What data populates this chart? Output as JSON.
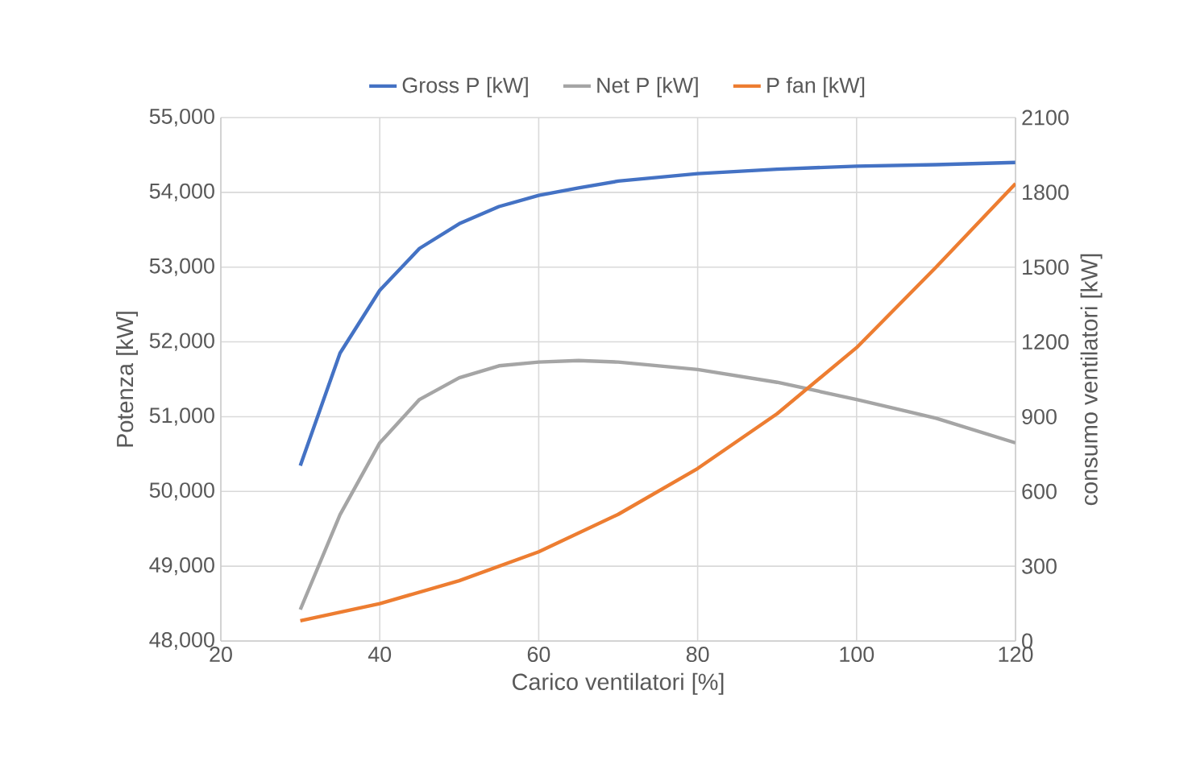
{
  "chart_data": {
    "type": "line",
    "xlabel": "Carico ventilatori [%]",
    "ylabel": "Potenza [kW]",
    "y2label": "consumo  ventilatori [kW]",
    "x": [
      30,
      35,
      40,
      45,
      50,
      55,
      60,
      65,
      70,
      80,
      90,
      100,
      110,
      120
    ],
    "series": [
      {
        "name": "Gross P [kW]",
        "color": "#4472c4",
        "values": [
          50346,
          51850,
          52690,
          53250,
          53580,
          53810,
          53960,
          54060,
          54150,
          54250,
          54310,
          54350,
          54370,
          54400
        ]
      },
      {
        "name": "Net P [kW]",
        "color": "#a5a5a5",
        "values": [
          48420,
          49690,
          50650,
          51230,
          51520,
          51680,
          51730,
          51750,
          51730,
          51630,
          51460,
          51230,
          50980,
          50650
        ]
      },
      {
        "name": "P fan [kW]",
        "color": "#ed7d31",
        "axis": "y2",
        "x": [
          30,
          40,
          50,
          60,
          70,
          80,
          90,
          100,
          110,
          120
        ],
        "values": [
          81,
          150,
          242,
          358,
          508,
          692,
          912,
          1177,
          1500,
          1835
        ]
      }
    ],
    "xlim": [
      20,
      120
    ],
    "xticks": [
      20,
      40,
      60,
      80,
      100,
      120
    ],
    "ylim": [
      48000,
      55000
    ],
    "yticks": [
      {
        "value": 48000,
        "label": "48,000"
      },
      {
        "value": 49000,
        "label": "49,000"
      },
      {
        "value": 50000,
        "label": "50,000"
      },
      {
        "value": 51000,
        "label": "51,000"
      },
      {
        "value": 52000,
        "label": "52,000"
      },
      {
        "value": 53000,
        "label": "53,000"
      },
      {
        "value": 54000,
        "label": "54,000"
      },
      {
        "value": 55000,
        "label": "55,000"
      }
    ],
    "y2lim": [
      0,
      2100
    ],
    "y2ticks": [
      0,
      300,
      600,
      900,
      1200,
      1500,
      1800,
      2100
    ],
    "grid": true,
    "legend": "top",
    "line_style": "solid"
  }
}
